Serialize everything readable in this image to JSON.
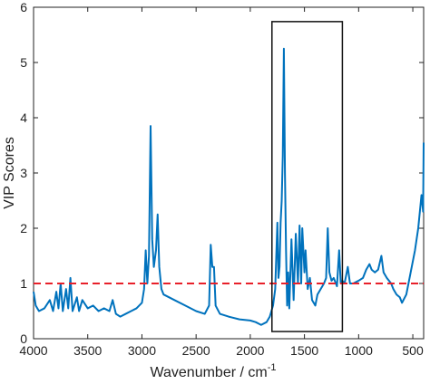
{
  "chart_data": {
    "type": "line",
    "xlabel": "Wavenumber / cm",
    "xlabel_superscript": "-1",
    "ylabel": "VIP Scores",
    "x": [
      4000,
      3980,
      3950,
      3900,
      3850,
      3820,
      3790,
      3770,
      3750,
      3730,
      3700,
      3680,
      3660,
      3640,
      3600,
      3580,
      3550,
      3500,
      3450,
      3400,
      3350,
      3300,
      3270,
      3240,
      3200,
      3150,
      3100,
      3050,
      3000,
      2980,
      2965,
      2950,
      2935,
      2920,
      2905,
      2890,
      2870,
      2855,
      2840,
      2820,
      2800,
      2700,
      2600,
      2500,
      2420,
      2380,
      2365,
      2350,
      2335,
      2320,
      2280,
      2200,
      2100,
      2000,
      1950,
      1900,
      1850,
      1820,
      1790,
      1770,
      1750,
      1740,
      1730,
      1720,
      1710,
      1700,
      1690,
      1680,
      1670,
      1660,
      1650,
      1640,
      1620,
      1600,
      1580,
      1560,
      1545,
      1530,
      1520,
      1500,
      1490,
      1470,
      1450,
      1430,
      1400,
      1380,
      1350,
      1320,
      1300,
      1285,
      1270,
      1250,
      1230,
      1200,
      1180,
      1165,
      1150,
      1130,
      1100,
      1080,
      1050,
      1000,
      960,
      930,
      900,
      880,
      850,
      820,
      790,
      770,
      740,
      700,
      680,
      650,
      620,
      600,
      560,
      520,
      480,
      450,
      420,
      405,
      400
    ],
    "series": [
      {
        "name": "VIP",
        "color": "#0072bd",
        "values": [
          0.85,
          0.6,
          0.5,
          0.55,
          0.7,
          0.5,
          0.85,
          0.55,
          1.0,
          0.5,
          0.9,
          0.55,
          1.1,
          0.5,
          0.75,
          0.5,
          0.7,
          0.55,
          0.6,
          0.5,
          0.55,
          0.5,
          0.7,
          0.45,
          0.4,
          0.45,
          0.5,
          0.55,
          0.65,
          0.9,
          1.6,
          1.0,
          1.5,
          3.85,
          1.8,
          1.3,
          1.6,
          2.25,
          1.3,
          0.9,
          0.8,
          0.7,
          0.6,
          0.5,
          0.45,
          0.6,
          1.7,
          1.3,
          1.3,
          0.6,
          0.45,
          0.4,
          0.35,
          0.33,
          0.3,
          0.25,
          0.3,
          0.4,
          0.6,
          0.9,
          2.1,
          1.1,
          1.3,
          2.1,
          2.5,
          3.3,
          5.25,
          3.0,
          1.6,
          0.6,
          1.2,
          0.55,
          1.8,
          0.7,
          1.9,
          1.0,
          2.05,
          1.0,
          2.0,
          1.2,
          1.6,
          0.9,
          1.1,
          0.7,
          0.6,
          0.8,
          0.9,
          1.0,
          1.1,
          2.0,
          1.2,
          1.05,
          1.1,
          0.95,
          1.6,
          1.0,
          1.05,
          1.0,
          1.3,
          1.0,
          1.0,
          1.05,
          1.1,
          1.25,
          1.35,
          1.25,
          1.2,
          1.25,
          1.5,
          1.2,
          1.1,
          1.0,
          0.9,
          0.8,
          0.75,
          0.65,
          0.8,
          1.2,
          1.6,
          2.0,
          2.6,
          2.3,
          3.55
        ]
      }
    ],
    "threshold": {
      "value": 1,
      "color": "#e8202a"
    },
    "highlight_region": {
      "x": [
        1800,
        1150
      ],
      "y": [
        0.13,
        5.74
      ]
    },
    "xlim": [
      4000,
      400
    ],
    "xticks": [
      4000,
      3500,
      3000,
      2500,
      2000,
      1500,
      1000,
      500
    ],
    "ylim": [
      0,
      6
    ],
    "yticks": [
      0,
      1,
      2,
      3,
      4,
      5,
      6
    ]
  }
}
